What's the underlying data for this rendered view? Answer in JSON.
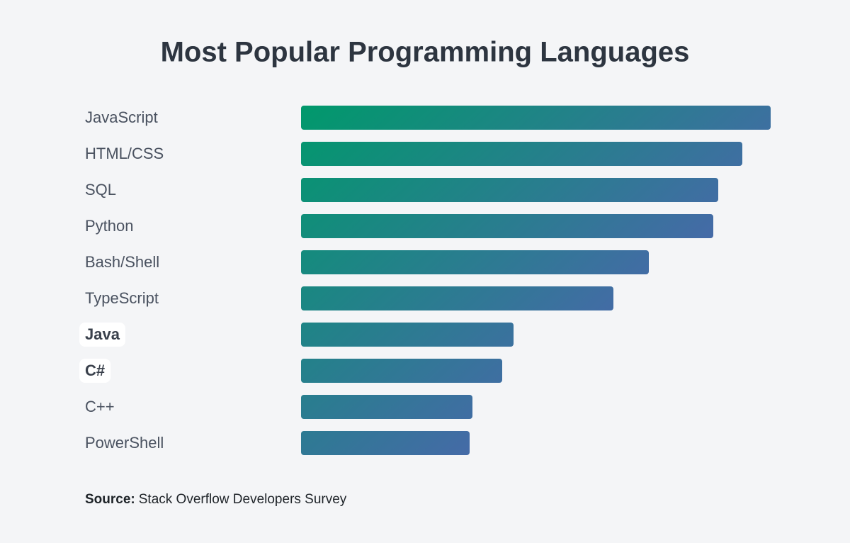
{
  "chart_data": {
    "type": "hbar",
    "title": "Most Popular Programming Languages",
    "categories": [
      "JavaScript",
      "HTML/CSS",
      "SQL",
      "Python",
      "Bash/Shell",
      "TypeScript",
      "Java",
      "C#",
      "C++",
      "PowerShell"
    ],
    "values": [
      66.3,
      62.3,
      58.9,
      58.2,
      49.1,
      44.1,
      30.0,
      28.4,
      24.2,
      23.8
    ],
    "gradient": [
      "#00996b",
      "#5d5abc"
    ],
    "highlight_indices": [
      6,
      7
    ],
    "source_label": "Source:",
    "source": "Stack Overflow Developers Survey"
  }
}
